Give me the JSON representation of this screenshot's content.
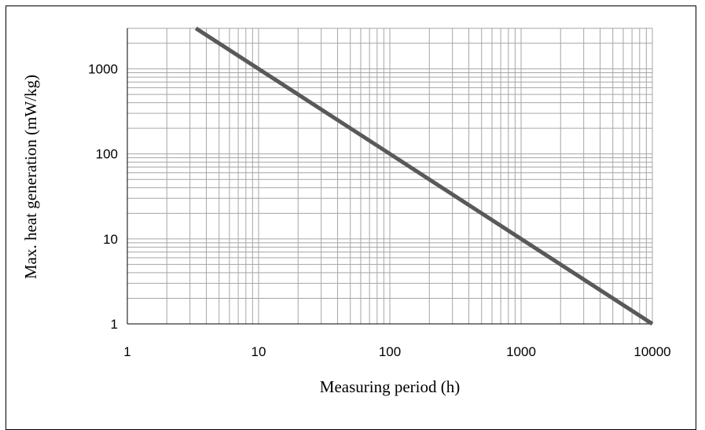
{
  "chart_data": {
    "type": "line",
    "title": "",
    "xlabel": "Measuring period (h)",
    "ylabel": "Max. heat generation (mW/kg)",
    "xscale": "log",
    "yscale": "log",
    "xlim": [
      1,
      10000
    ],
    "ylim": [
      1,
      3000
    ],
    "xticks": [
      "1",
      "10",
      "100",
      "1000",
      "10000"
    ],
    "yticks": [
      "1",
      "10",
      "100",
      "1000"
    ],
    "grid": true,
    "legend": "none",
    "series": [
      {
        "x": [
          3.33,
          10,
          100,
          1000,
          10000
        ],
        "y": [
          3000,
          1000,
          100,
          10,
          1
        ],
        "color": "#595959"
      }
    ],
    "colors": {
      "grid": "#a6a6a6",
      "line": "#595959",
      "axis": "#000000"
    }
  }
}
